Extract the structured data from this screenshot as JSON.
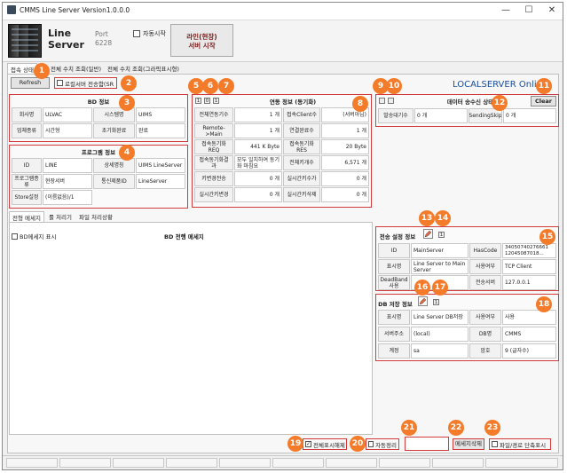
{
  "window": {
    "title": "CMMS Line Server Version1.0.0.0",
    "minimize_glyph": "—",
    "maximize_glyph": "☐",
    "close_glyph": "✕"
  },
  "header": {
    "app_name_line1": "Line",
    "app_name_line2": "Server",
    "port_label": "Port",
    "port_value": "6228",
    "auto_start_label": "자동시작",
    "start_button_line1": "라인(현장)",
    "start_button_line2": "서버 시작"
  },
  "top_tabs": [
    "접속 상태",
    "전체 수치 조회(일반)",
    "전체 수치 조회(그라픽표시형)"
  ],
  "refresh_label": "Refresh",
  "local_send_label": "로컬서버 전송함(SR",
  "local_server_banner": "LOCALSERVER Online",
  "db_info": {
    "title": "BD 정보",
    "rows": [
      [
        "회사명",
        "ULVAC",
        "시스템명",
        "UIMS"
      ],
      [
        "업체종류",
        "시간형",
        "초기화완료",
        "완료"
      ]
    ]
  },
  "program_info": {
    "title": "프로그램 정보",
    "rows": [
      [
        "ID",
        "LINE",
        "상세명칭",
        "UIMS LineServer"
      ],
      [
        "프로그램종류",
        "현장서버",
        "통신제품ID",
        "LineServer"
      ],
      [
        "Store설정",
        "(이름없음)/1",
        "",
        ""
      ]
    ]
  },
  "conn_info": {
    "title": "연동 정보 (동기화)",
    "tiny_buttons": [
      "1",
      "0",
      "1"
    ],
    "rows": [
      [
        "전체연동기수",
        "1 개",
        "접속Client수",
        "(서버아님)"
      ],
      [
        "Remote->Main",
        "1 개",
        "연결완료수",
        "1 개"
      ],
      [
        "접속동기화REQ",
        "441 K Byte",
        "접속동기화RES",
        "20 Byte"
      ],
      [
        "접속동기화결과",
        "모두 일치하여 동기화 마침요",
        "전체키개수",
        "6,571 개"
      ],
      [
        "키변경전송",
        "0 개",
        "실시간키수가",
        "0 개"
      ],
      [
        "실시간키변경",
        "0 개",
        "실시간키삭제",
        "0 개"
      ]
    ]
  },
  "send_state": {
    "title": "데이터 송수신 상태",
    "clear_label": "Clear",
    "rows": [
      [
        "발송대기수",
        "0 개",
        "SendingSkip",
        "0 개"
      ]
    ]
  },
  "lower_tabs": [
    "전형 메세지",
    "룰 처리기",
    "파일 처리상황"
  ],
  "bd_msg_checkbox_label": "BD메세지 표시",
  "bd_msg_title": "BD 전행 메세지",
  "transfer_info": {
    "title": "전송 설정 정보",
    "tiny_button": "1",
    "rows": [
      [
        "ID",
        "MainServer",
        "HasCode",
        "34050740276661 12045087018..."
      ],
      [
        "표시명",
        "Line Server to Main Server",
        "사용여부",
        "TCP Client"
      ],
      [
        "DeadBand사용",
        "",
        "전송서버",
        "127.0.0.1"
      ]
    ]
  },
  "db_save_info": {
    "title": "DB 저장 정보",
    "tiny_button": "1",
    "rows": [
      [
        "표시명",
        "Line Server DB저장",
        "사용여부",
        "사용"
      ],
      [
        "서버주소",
        "(local)",
        "DB명",
        "CMMS"
      ],
      [
        "계정",
        "sa",
        "암호",
        "9 (글자수)"
      ]
    ]
  },
  "bottom": {
    "show_all_label": "전체표시해제",
    "auto_clear_label": "자동정리",
    "input_value": "",
    "msg_delete_label": "메세지삭제",
    "file_path_label": "파일/경로 단축표시"
  },
  "badges": [
    "1",
    "2",
    "3",
    "4",
    "5",
    "6",
    "7",
    "8",
    "9",
    "10",
    "11",
    "12",
    "13",
    "14",
    "15",
    "16",
    "17",
    "18",
    "19",
    "20",
    "21",
    "22",
    "23"
  ],
  "colors": {
    "badge": "#f47b2a",
    "panel_border": "#d23b3b",
    "start_text": "#7a1c1c",
    "banner": "#1c4fa0"
  }
}
